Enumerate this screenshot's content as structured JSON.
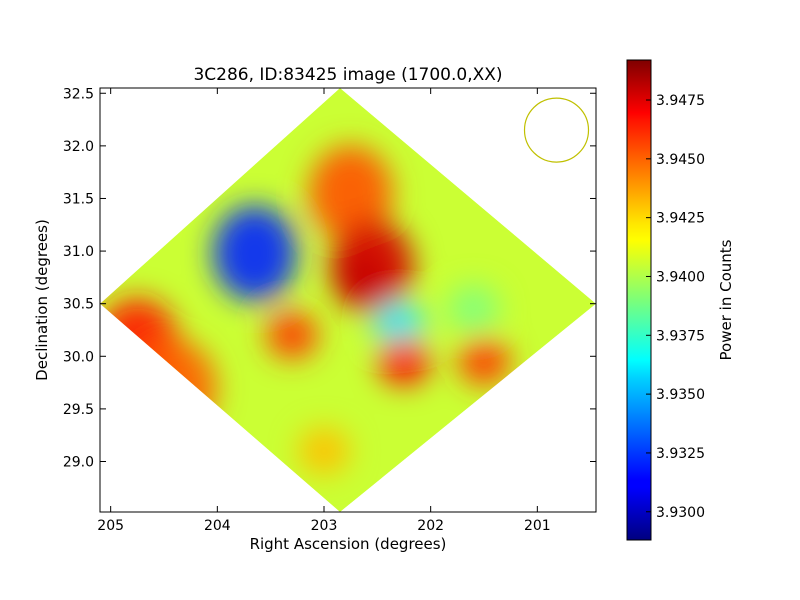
{
  "chart_data": {
    "type": "heatmap",
    "title": "3C286, ID:83425 image (1700.0,XX)",
    "xlabel": "Right Ascension (degrees)",
    "ylabel": "Declination (degrees)",
    "xlim": [
      205.1,
      200.45
    ],
    "ylim": [
      28.52,
      32.55
    ],
    "x_ticks": [
      {
        "value": 205,
        "label": "205"
      },
      {
        "value": 204,
        "label": "204"
      },
      {
        "value": 203,
        "label": "203"
      },
      {
        "value": 202,
        "label": "202"
      },
      {
        "value": 201,
        "label": "201"
      }
    ],
    "y_ticks": [
      {
        "value": 29.0,
        "label": "29.0"
      },
      {
        "value": 29.5,
        "label": "29.5"
      },
      {
        "value": 30.0,
        "label": "30.0"
      },
      {
        "value": 30.5,
        "label": "30.5"
      },
      {
        "value": 31.0,
        "label": "31.0"
      },
      {
        "value": 31.5,
        "label": "31.5"
      },
      {
        "value": 32.0,
        "label": "32.0"
      },
      {
        "value": 32.5,
        "label": "32.5"
      }
    ],
    "colorbar": {
      "label": "Power in Counts",
      "colormap": "jet",
      "range": [
        3.9288,
        3.9492
      ],
      "ticks": [
        {
          "value": 3.93,
          "label": "3.9300"
        },
        {
          "value": 3.9325,
          "label": "3.9325"
        },
        {
          "value": 3.935,
          "label": "3.9350"
        },
        {
          "value": 3.9375,
          "label": "3.9375"
        },
        {
          "value": 3.94,
          "label": "3.9400"
        },
        {
          "value": 3.9425,
          "label": "3.9425"
        },
        {
          "value": 3.945,
          "label": "3.9450"
        },
        {
          "value": 3.9475,
          "label": "3.9475"
        }
      ]
    },
    "footprint": {
      "shape": "diamond",
      "vertices": [
        {
          "ra": 202.85,
          "dec": 32.55
        },
        {
          "ra": 200.45,
          "dec": 30.5
        },
        {
          "ra": 202.85,
          "dec": 28.52
        },
        {
          "ra": 205.1,
          "dec": 30.5
        }
      ],
      "background_value": 3.9405
    },
    "regions": [
      {
        "ra": 202.75,
        "dec": 31.55,
        "value": 3.945
      },
      {
        "ra": 202.55,
        "dec": 30.85,
        "value": 3.9475
      },
      {
        "ra": 204.75,
        "dec": 30.1,
        "value": 3.9462
      },
      {
        "ra": 204.4,
        "dec": 29.7,
        "value": 3.9448
      },
      {
        "ra": 203.65,
        "dec": 30.98,
        "value": 3.932
      },
      {
        "ra": 203.0,
        "dec": 29.1,
        "value": 3.9428
      },
      {
        "ra": 201.6,
        "dec": 30.45,
        "value": 3.939
      },
      {
        "ra": 202.3,
        "dec": 30.3,
        "value": 3.936
      },
      {
        "ra": 203.3,
        "dec": 30.2,
        "value": 3.9455
      },
      {
        "ra": 202.25,
        "dec": 29.95,
        "value": 3.9465
      },
      {
        "ra": 201.5,
        "dec": 29.95,
        "value": 3.9455
      },
      {
        "ra": 202.65,
        "dec": 30.75,
        "value": 3.9478
      }
    ],
    "beam_circle": {
      "ra": 200.82,
      "dec": 32.15,
      "radius_deg": 0.3,
      "color": "#c0c000"
    }
  }
}
